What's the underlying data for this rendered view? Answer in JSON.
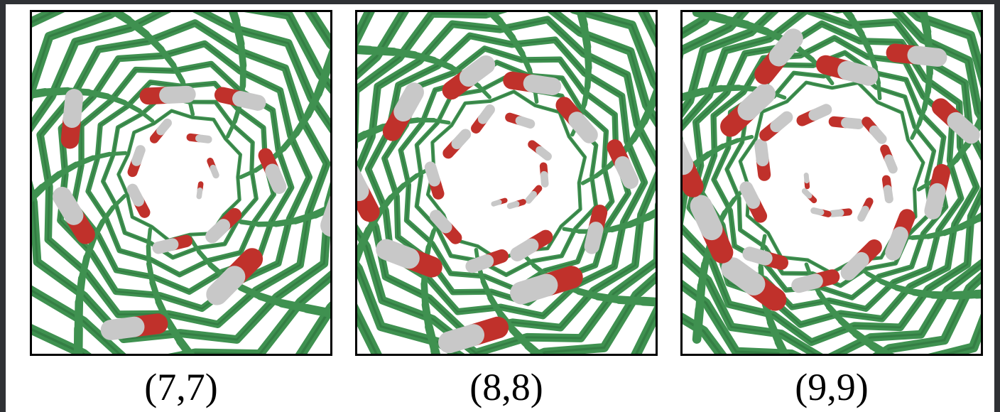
{
  "panels": [
    {
      "label": "(7,7)",
      "inner_radius": 0.21,
      "rings": 5,
      "molecules": 16
    },
    {
      "label": "(8,8)",
      "inner_radius": 0.27,
      "rings": 5,
      "molecules": 22
    },
    {
      "label": "(9,9)",
      "inner_radius": 0.31,
      "rings": 5,
      "molecules": 26
    }
  ],
  "colors": {
    "carbon": "#3f9150",
    "carbon_dark": "#2a6b38",
    "oxygen": "#c0312b",
    "hydrogen": "#c8c8c8",
    "frame": "#000000",
    "background": "#ffffff"
  }
}
